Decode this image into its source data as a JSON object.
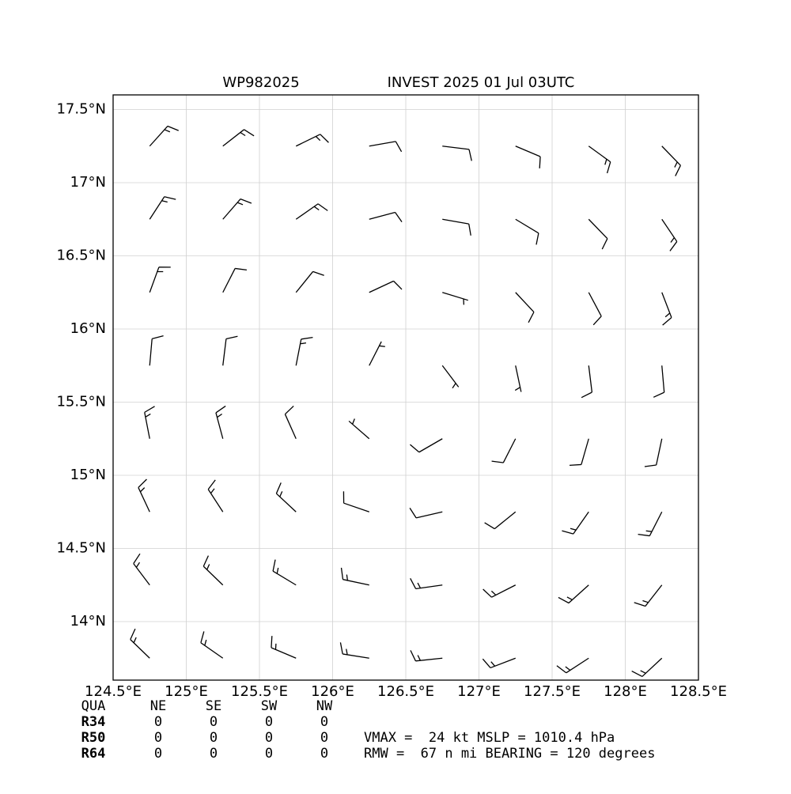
{
  "chart_data": {
    "type": "wind_barb",
    "title_left": "WP982025",
    "title_right": "INVEST 2025 01 Jul 03UTC",
    "xlim": [
      124.5,
      128.5
    ],
    "ylim": [
      13.6,
      17.6
    ],
    "xticks": [
      {
        "value": 124.5,
        "label": "124.5°E"
      },
      {
        "value": 125,
        "label": "125°E"
      },
      {
        "value": 125.5,
        "label": "125.5°E"
      },
      {
        "value": 126,
        "label": "126°E"
      },
      {
        "value": 126.5,
        "label": "126.5°E"
      },
      {
        "value": 127,
        "label": "127°E"
      },
      {
        "value": 127.5,
        "label": "127.5°E"
      },
      {
        "value": 128,
        "label": "128°E"
      },
      {
        "value": 128.5,
        "label": "128.5°E"
      }
    ],
    "yticks": [
      {
        "value": 14,
        "label": "14°N"
      },
      {
        "value": 14.5,
        "label": "14.5°N"
      },
      {
        "value": 15,
        "label": "15°N"
      },
      {
        "value": 15.5,
        "label": "15.5°N"
      },
      {
        "value": 16,
        "label": "16°N"
      },
      {
        "value": 16.5,
        "label": "16.5°N"
      },
      {
        "value": 17,
        "label": "17°N"
      },
      {
        "value": 17.5,
        "label": "17.5°N"
      }
    ],
    "grid": true,
    "color": "#000000",
    "barbs": {
      "lon": [
        124.75,
        125.25,
        125.75,
        126.25,
        126.75,
        127.25,
        127.75,
        128.25
      ],
      "lat": [
        17.25,
        16.75,
        16.25,
        15.75,
        15.25,
        14.75,
        14.25,
        13.75
      ],
      "direction": [
        [
          42,
          52,
          64,
          80,
          97,
          113,
          126,
          136
        ],
        [
          33,
          41,
          55,
          75,
          100,
          121,
          136,
          146
        ],
        [
          20,
          27,
          39,
          65,
          107,
          137,
          152,
          159
        ],
        [
          5,
          7,
          11,
          27,
          143,
          168,
          173,
          175
        ],
        [
          349,
          345,
          336,
          311,
          240,
          207,
          196,
          192
        ],
        [
          335,
          327,
          313,
          289,
          257,
          231,
          215,
          207
        ],
        [
          323,
          314,
          301,
          282,
          262,
          243,
          228,
          218
        ],
        [
          314,
          305,
          293,
          279,
          264,
          249,
          237,
          227
        ]
      ],
      "speed": [
        [
          15,
          15,
          15,
          10,
          10,
          10,
          15,
          15
        ],
        [
          15,
          15,
          15,
          10,
          10,
          10,
          10,
          15
        ],
        [
          15,
          10,
          10,
          10,
          5,
          10,
          10,
          15
        ],
        [
          10,
          10,
          15,
          5,
          5,
          5,
          10,
          10
        ],
        [
          15,
          15,
          10,
          5,
          10,
          10,
          10,
          10
        ],
        [
          15,
          15,
          15,
          10,
          10,
          10,
          15,
          15
        ],
        [
          15,
          15,
          15,
          15,
          15,
          15,
          15,
          15
        ],
        [
          15,
          15,
          15,
          15,
          15,
          15,
          15,
          15
        ]
      ]
    }
  },
  "radii_table": {
    "header": [
      "QUA",
      "NE",
      "SE",
      "SW",
      "NW"
    ],
    "rows": [
      [
        "R34",
        0,
        0,
        0,
        0
      ],
      [
        "R50",
        0,
        0,
        0,
        0
      ],
      [
        "R64",
        0,
        0,
        0,
        0
      ]
    ]
  },
  "info": [
    "VMAX =  24 kt MSLP = 1010.4 hPa",
    "RMW =  67 n mi BEARING = 120 degrees"
  ]
}
